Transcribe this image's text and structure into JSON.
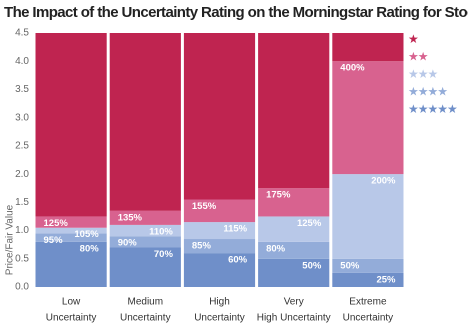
{
  "chart_data": {
    "type": "threshold-bar",
    "title": "The Impact of the Uncertainty Rating on the Morningstar Rating for Stocks",
    "y_label": "Price/Fair Value",
    "categories": [
      [
        "Low",
        "Uncertainty"
      ],
      [
        "Medium",
        "Uncertainty"
      ],
      [
        "High",
        "Uncertainty"
      ],
      [
        "Very",
        "High Uncertainty"
      ],
      [
        "Extreme",
        "Uncertainty"
      ]
    ],
    "ylim": [
      0,
      4.5
    ],
    "yticks": [
      {
        "value": 0,
        "label": "0.0"
      },
      0.5,
      {
        "value": 1,
        "label": "1.0"
      },
      1.5,
      {
        "value": 2,
        "label": "2.0"
      },
      2.5,
      {
        "value": 3,
        "label": "3.0"
      },
      3.5,
      {
        "value": 4,
        "label": "4.0"
      },
      4.5
    ],
    "series": [
      {
        "name": "★★★★★",
        "color": "#6f8fc9",
        "values": [
          0.8,
          0.7,
          0.6,
          0.5,
          0.25
        ],
        "value_labels": [
          "80%",
          "70%",
          "60%",
          "50%",
          "25%"
        ]
      },
      {
        "name": "★★★★",
        "color": "#93acd9",
        "values": [
          0.95,
          0.9,
          0.85,
          0.8,
          0.5
        ],
        "value_labels": [
          "95%",
          "90%",
          "85%",
          "80%",
          "50%"
        ]
      },
      {
        "name": "★★★",
        "color": "#b8c8e8",
        "values": [
          1.05,
          1.1,
          1.15,
          1.25,
          2.0
        ],
        "value_labels": [
          "105%",
          "110%",
          "115%",
          "125%",
          "200%"
        ]
      },
      {
        "name": "★★",
        "color": "#d8628f",
        "values": [
          1.25,
          1.35,
          1.55,
          1.75,
          4.0
        ],
        "value_labels": [
          "125%",
          "135%",
          "155%",
          "175%",
          "400%"
        ]
      },
      {
        "name": "★",
        "color": "#bf2450"
      }
    ]
  }
}
